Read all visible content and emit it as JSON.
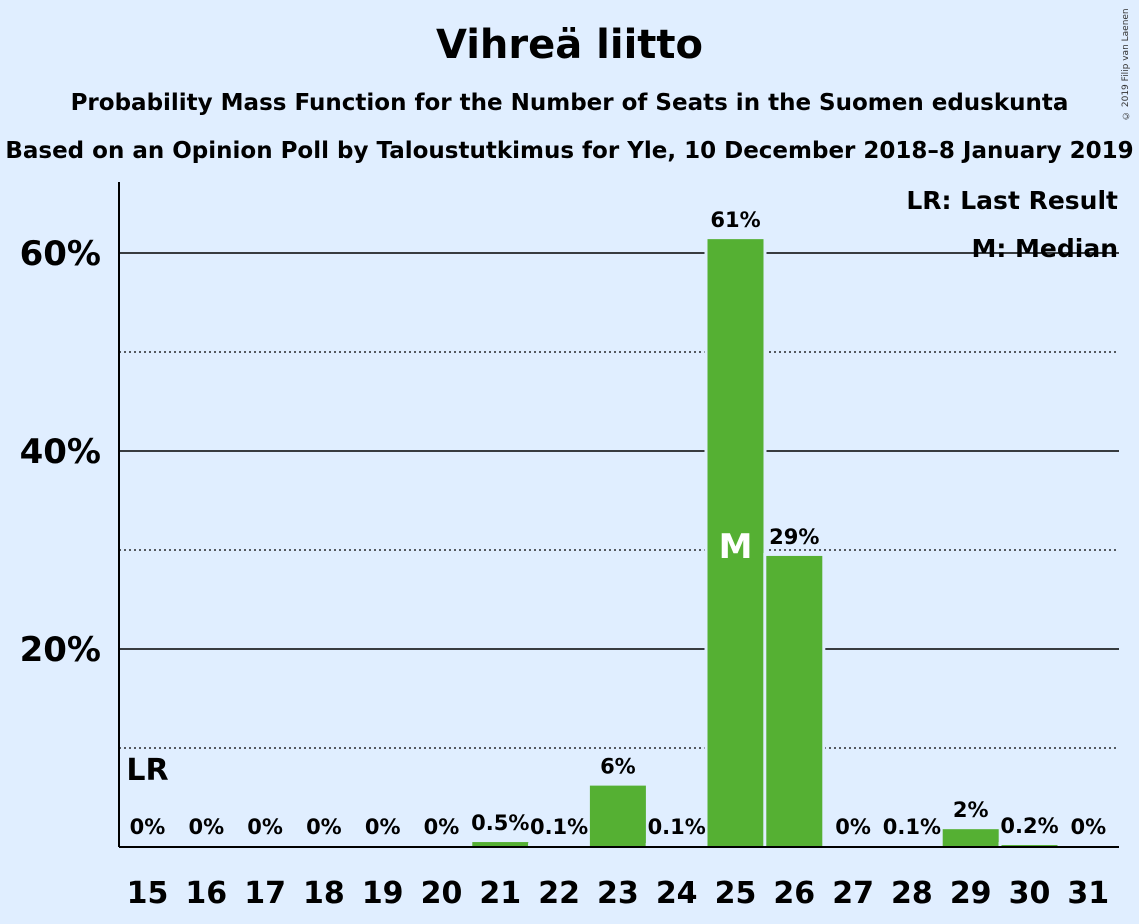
{
  "chart_data": {
    "type": "bar",
    "title": "Vihreä liitto",
    "subtitle": "Probability Mass Function for the Number of Seats in the Suomen eduskunta",
    "subtitle2": "Based on an Opinion Poll by Taloustutkimus for Yle, 10 December 2018–8 January 2019",
    "copyright": "© 2019 Filip van Laenen",
    "categories": [
      "15",
      "16",
      "17",
      "18",
      "19",
      "20",
      "21",
      "22",
      "23",
      "24",
      "25",
      "26",
      "27",
      "28",
      "29",
      "30",
      "31"
    ],
    "values": [
      0,
      0,
      0,
      0,
      0,
      0,
      0.5,
      0.1,
      6.2,
      0.1,
      61.4,
      29.4,
      0,
      0.1,
      1.8,
      0.2,
      0
    ],
    "data_labels": [
      "0%",
      "0%",
      "0%",
      "0%",
      "0%",
      "0%",
      "0.5%",
      "0.1%",
      "6%",
      "0.1%",
      "61%",
      "29%",
      "0%",
      "0.1%",
      "2%",
      "0.2%",
      "0%"
    ],
    "ylim": [
      0,
      67
    ],
    "yticks": [
      20,
      40,
      60
    ],
    "ytick_labels": [
      "20%",
      "40%",
      "60%"
    ],
    "minor_gridlines": [
      10,
      30,
      50
    ],
    "bar_color": "#55b033",
    "last_result_category": "15",
    "last_result_marker": "LR",
    "median_category": "25",
    "median_marker": "M",
    "legend": [
      "LR: Last Result",
      "M: Median"
    ],
    "legend_position": "top-right"
  }
}
